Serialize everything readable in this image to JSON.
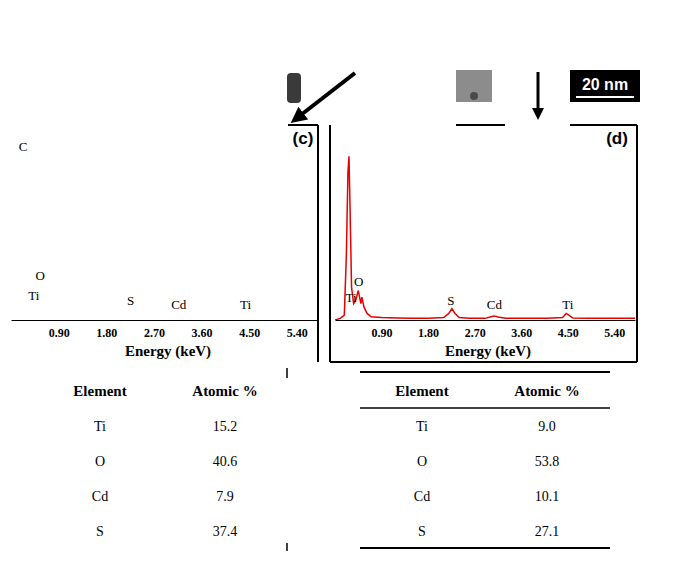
{
  "figure": {
    "panel_labels": [
      "(c)",
      "(d)"
    ],
    "scale_bar": "20 nm"
  },
  "chart_data": [
    {
      "type": "line",
      "xlabel": "Energy (keV)",
      "xlim": [
        0,
        5.8
      ],
      "ylim": [
        0,
        110
      ],
      "tick_labels": "x",
      "xticks": [
        {
          "value": 0.9,
          "label": "0.90"
        },
        {
          "value": 1.8,
          "label": "1.80"
        },
        {
          "value": 2.7,
          "label": "2.70"
        },
        {
          "value": 3.6,
          "label": "3.60"
        },
        {
          "value": 4.5,
          "label": "4.50"
        },
        {
          "value": 5.4,
          "label": "5.40"
        }
      ],
      "annotations": [
        {
          "text": "C",
          "x": 0.23,
          "y": 106
        },
        {
          "text": "O",
          "x": 0.55,
          "y": 27.5
        },
        {
          "text": "Ti",
          "x": 0.43,
          "y": 14.7
        },
        {
          "text": "S",
          "x": 2.26,
          "y": 12.2
        },
        {
          "text": "Cd",
          "x": 3.17,
          "y": 9.8
        },
        {
          "text": "Ti",
          "x": 4.43,
          "y": 9.8
        }
      ]
    },
    {
      "type": "line",
      "xlabel": "Energy (keV)",
      "xlim": [
        0,
        5.8
      ],
      "ylim": [
        0,
        110
      ],
      "tick_labels": "x",
      "xticks": [
        {
          "value": 0.9,
          "label": "0.90"
        },
        {
          "value": 1.8,
          "label": "1.80"
        },
        {
          "value": 2.7,
          "label": "2.70"
        },
        {
          "value": 3.6,
          "label": "3.60"
        },
        {
          "value": 4.5,
          "label": "4.50"
        },
        {
          "value": 5.4,
          "label": "5.40"
        }
      ],
      "annotations": [
        {
          "text": "O",
          "x": 0.46,
          "y": 23.8
        },
        {
          "text": "Ti",
          "x": 0.31,
          "y": 14
        },
        {
          "text": "S",
          "x": 2.24,
          "y": 12.2
        },
        {
          "text": "Cd",
          "x": 3.08,
          "y": 9.8
        },
        {
          "text": "Ti",
          "x": 4.5,
          "y": 9.2
        }
      ],
      "x": [
        0.0,
        0.1,
        0.18,
        0.22,
        0.25,
        0.27,
        0.29,
        0.32,
        0.36,
        0.4,
        0.45,
        0.5,
        0.52,
        0.56,
        0.62,
        0.7,
        0.9,
        1.2,
        1.5,
        1.8,
        2.1,
        2.2,
        2.26,
        2.32,
        2.4,
        2.6,
        2.9,
        3.0,
        3.08,
        3.15,
        3.3,
        3.7,
        4.1,
        4.4,
        4.47,
        4.52,
        4.6,
        4.9,
        5.3,
        5.8
      ],
      "series": [
        {
          "color": "#e60000",
          "values": [
            0,
            1,
            3,
            40,
            90,
            100,
            70,
            20,
            10,
            12,
            18,
            10,
            14,
            8,
            4,
            2,
            1.5,
            1.2,
            1,
            1,
            1.5,
            4,
            7,
            4,
            1.5,
            1,
            1,
            1.8,
            2.5,
            1.8,
            1,
            1,
            1,
            1.5,
            4,
            3,
            1.2,
            1,
            1,
            1
          ]
        }
      ]
    }
  ],
  "tables": [
    {
      "columns": [
        "Element",
        "Atomic %"
      ],
      "rows": [
        [
          "Ti",
          15.2
        ],
        [
          "O",
          40.6
        ],
        [
          "Cd",
          7.9
        ],
        [
          "S",
          37.4
        ]
      ]
    },
    {
      "columns": [
        "Element",
        "Atomic %"
      ],
      "rows": [
        [
          "Ti",
          9.0
        ],
        [
          "O",
          53.8
        ],
        [
          "Cd",
          10.1
        ],
        [
          "S",
          27.1
        ]
      ]
    }
  ]
}
